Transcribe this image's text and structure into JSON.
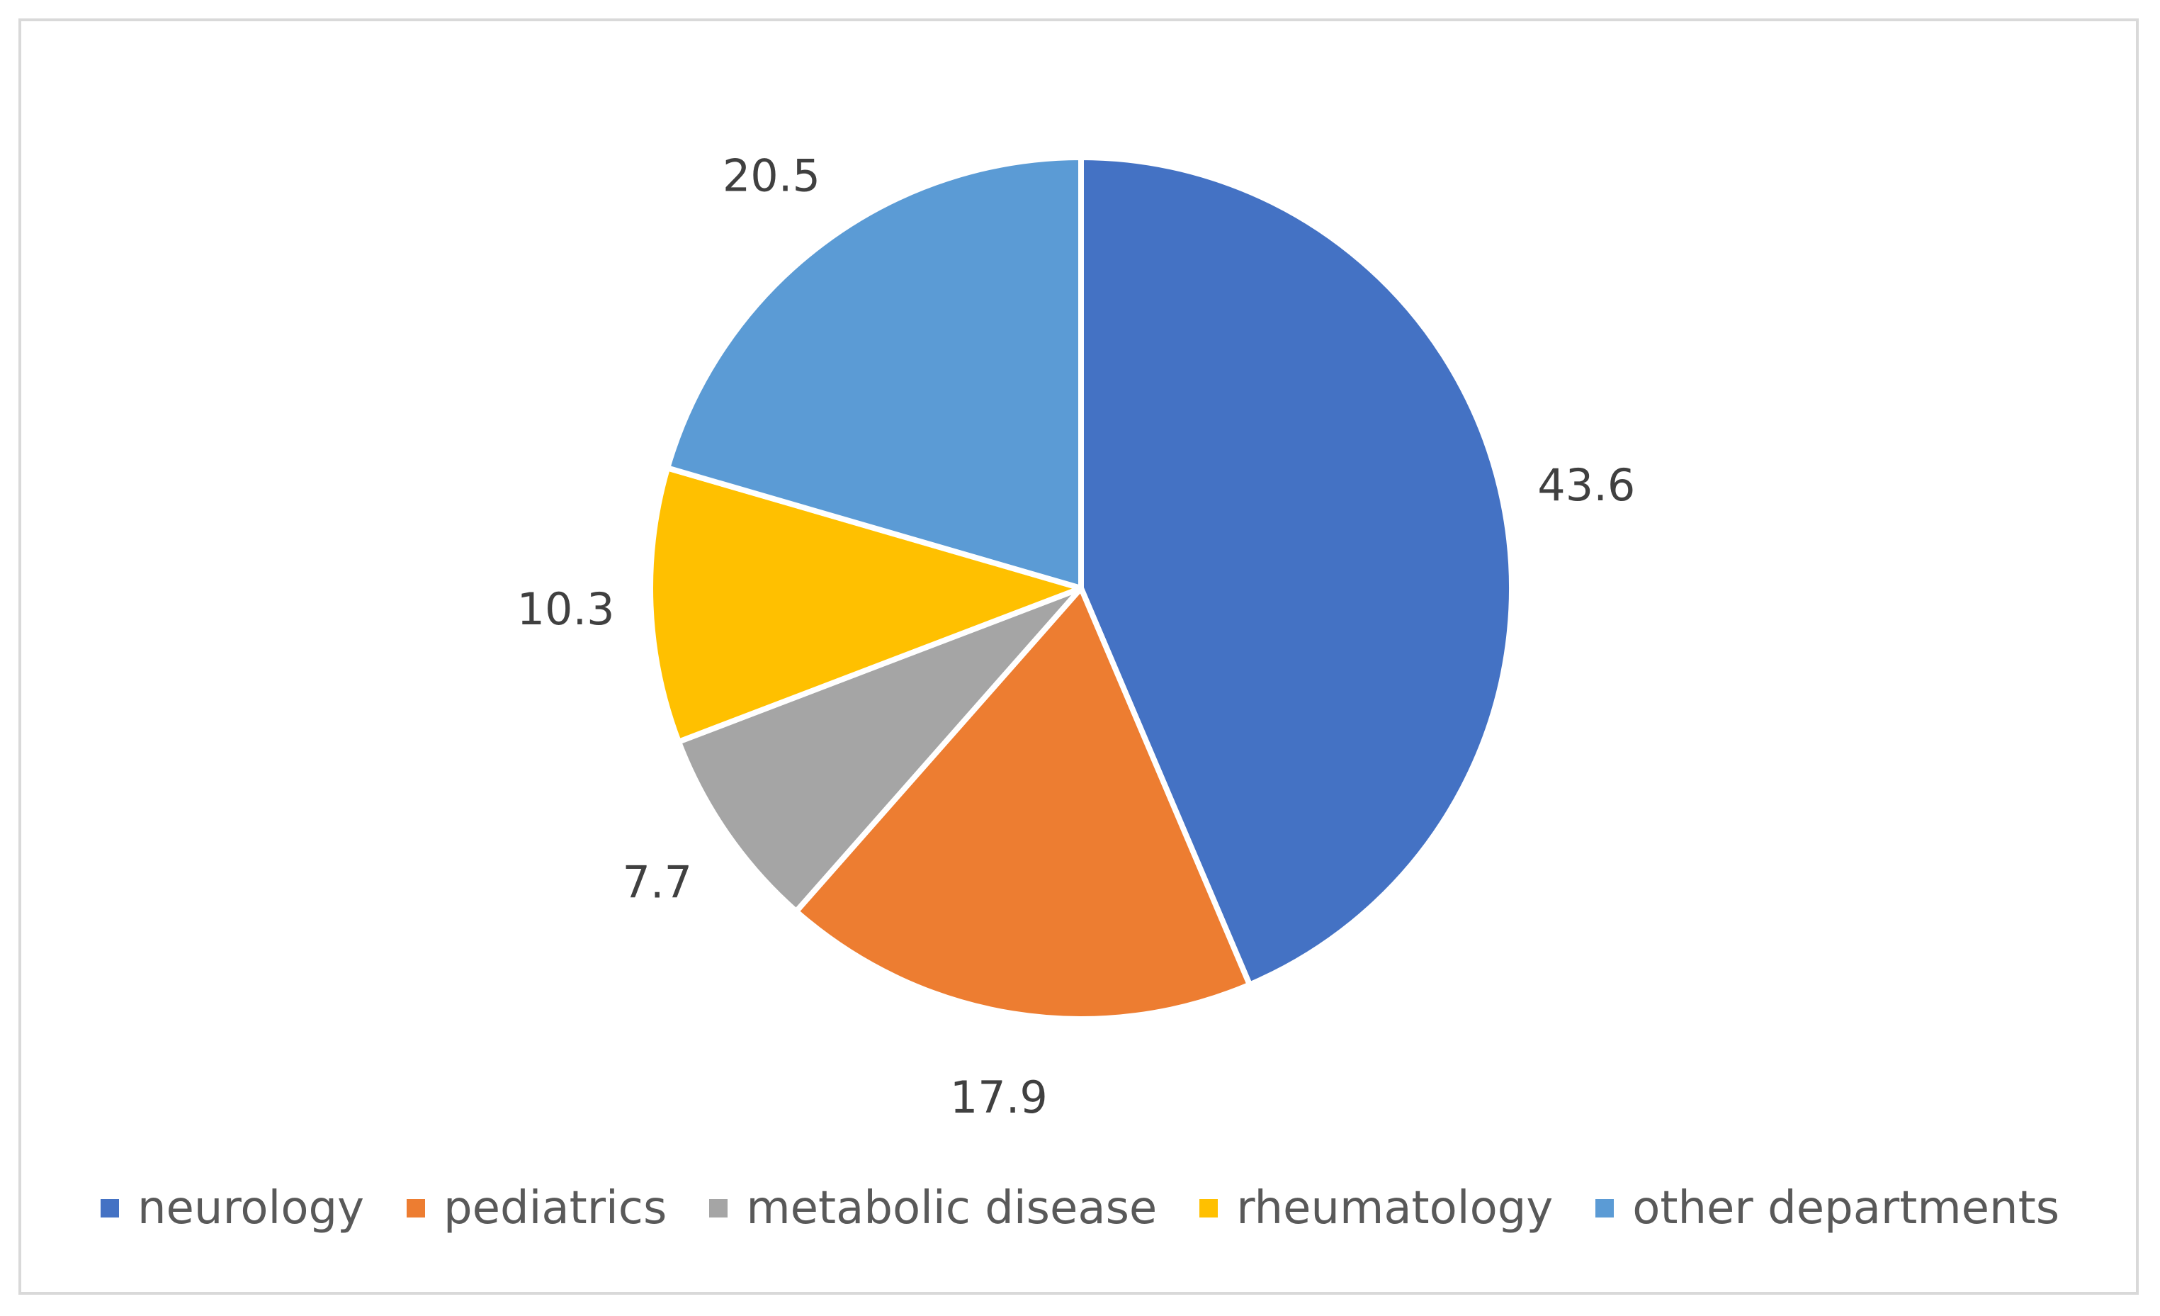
{
  "chart_data": {
    "type": "pie",
    "title": "",
    "categories": [
      "neurology",
      "pediatrics",
      "metabolic disease",
      "rheumatology",
      "other departments"
    ],
    "values": [
      43.6,
      17.9,
      7.7,
      10.3,
      20.5
    ],
    "data_labels": [
      "43.6",
      "17.9",
      "7.7",
      "10.3",
      "20.5"
    ],
    "colors": [
      "#4472c4",
      "#ed7d31",
      "#a5a5a5",
      "#ffc000",
      "#5b9bd5"
    ],
    "start_angle_deg": 0,
    "direction": "clockwise",
    "legend_position": "bottom"
  }
}
